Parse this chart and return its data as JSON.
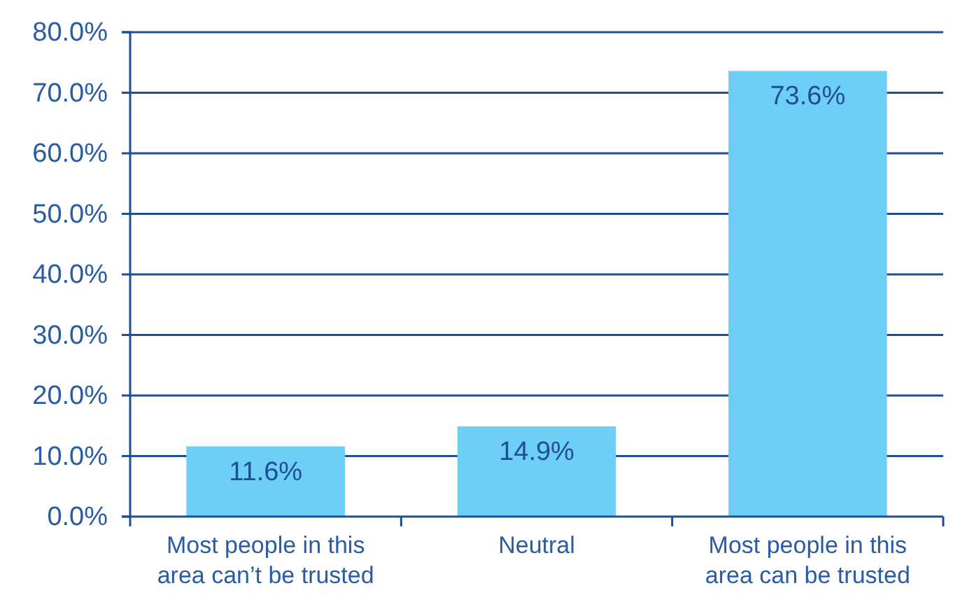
{
  "chart_data": {
    "type": "bar",
    "categories": [
      "Most people in this area can’t be trusted",
      "Neutral",
      "Most people in this area can be trusted"
    ],
    "values": [
      11.6,
      14.9,
      73.6
    ],
    "color": "#6dcff6",
    "value_labels": [
      "11.6%",
      "14.9%",
      "73.6%"
    ],
    "ylim": [
      0,
      80
    ],
    "yticks": [
      {
        "value": 0,
        "label": "0.0%"
      },
      {
        "value": 10,
        "label": "10.0%"
      },
      {
        "value": 20,
        "label": "20.0%"
      },
      {
        "value": 30,
        "label": "30.0%"
      },
      {
        "value": 40,
        "label": "40.0%"
      },
      {
        "value": 50,
        "label": "50.0%"
      },
      {
        "value": 60,
        "label": "60.0%"
      },
      {
        "value": 70,
        "label": "70.0%"
      },
      {
        "value": 80,
        "label": "80.0%"
      }
    ],
    "grid": "y"
  }
}
